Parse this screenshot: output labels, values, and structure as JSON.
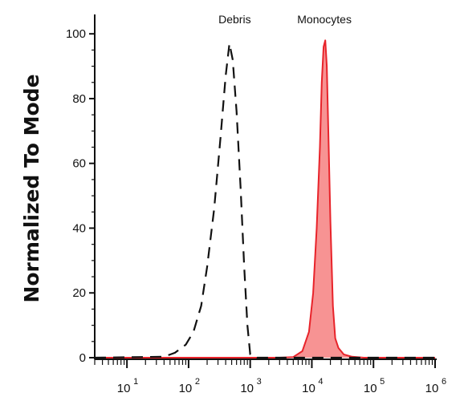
{
  "chart_data": {
    "type": "area",
    "title": "",
    "xlabel": "",
    "ylabel": "Normalized To Mode",
    "x_scale": "log",
    "xlim": [
      3,
      1000000
    ],
    "ylim": [
      0,
      105
    ],
    "grid": false,
    "legend": "none",
    "y_ticks": [
      0,
      20,
      40,
      60,
      80,
      100
    ],
    "x_ticks": [
      {
        "base": "10",
        "exp": "1",
        "value": 10
      },
      {
        "base": "10",
        "exp": "2",
        "value": 100
      },
      {
        "base": "10",
        "exp": "3",
        "value": 1000
      },
      {
        "base": "10",
        "exp": "4",
        "value": 10000
      },
      {
        "base": "10",
        "exp": "5",
        "value": 100000
      },
      {
        "base": "10",
        "exp": "6",
        "value": 1000000
      }
    ],
    "annotations": [
      {
        "text": "Debris",
        "x": 560,
        "y": 100
      },
      {
        "text": "Monocytes",
        "x": 16000,
        "y": 100
      }
    ],
    "series": [
      {
        "name": "Debris",
        "style": "dashed",
        "color": "#111111",
        "fill": "none",
        "x": [
          3,
          40,
          60,
          90,
          120,
          160,
          200,
          260,
          330,
          400,
          460,
          520,
          600,
          700,
          800,
          900,
          1000,
          1300,
          2000,
          10000,
          1000000
        ],
        "y": [
          0,
          0.3,
          1.5,
          4,
          8,
          16,
          28,
          46,
          68,
          87,
          97,
          92,
          76,
          52,
          28,
          10,
          1,
          0,
          0,
          0,
          0
        ]
      },
      {
        "name": "Monocytes",
        "style": "solid",
        "color": "#e8232a",
        "fill": "#f79393",
        "x": [
          3,
          3000,
          5000,
          7000,
          9000,
          10500,
          12000,
          13500,
          14500,
          15500,
          16500,
          17500,
          18500,
          20000,
          22000,
          24000,
          27000,
          33000,
          45000,
          70000,
          1000000
        ],
        "y": [
          0,
          0,
          0.2,
          2,
          8,
          20,
          40,
          65,
          85,
          96,
          98,
          90,
          70,
          42,
          16,
          6,
          3,
          1,
          0.3,
          0,
          0
        ]
      }
    ]
  }
}
